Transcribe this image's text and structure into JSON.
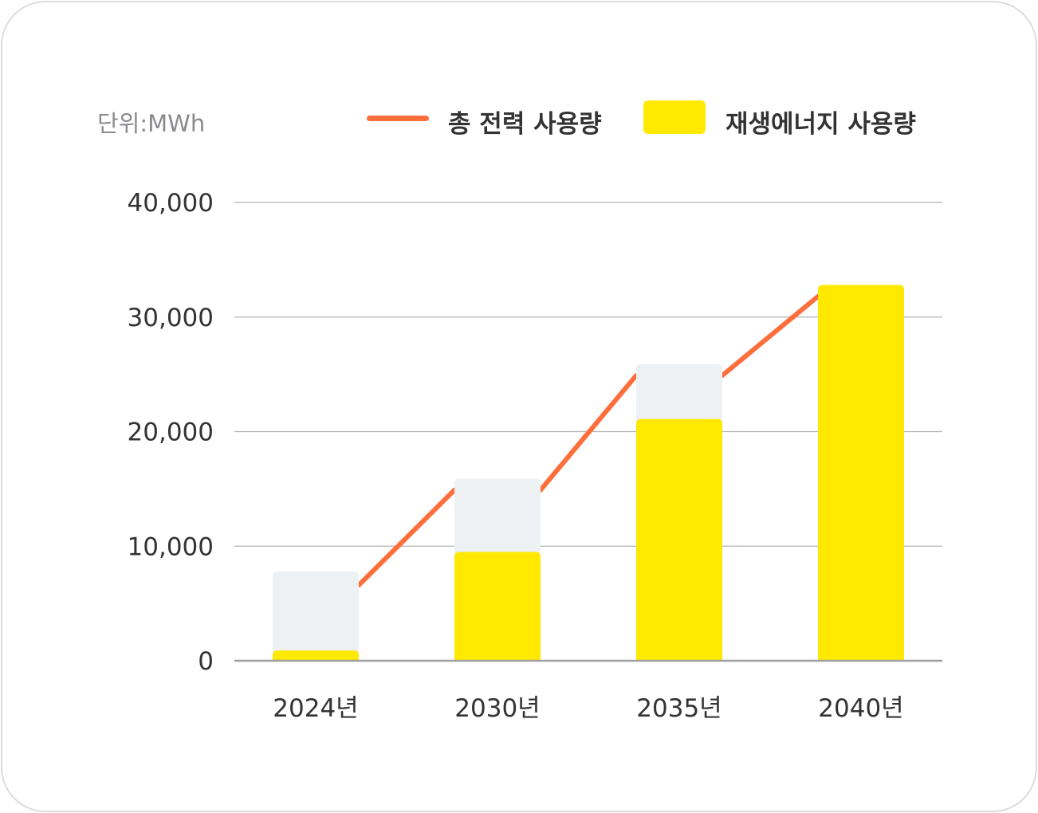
{
  "chart_data": {
    "type": "bar",
    "unit_label": "단위:MWh",
    "categories": [
      "2024년",
      "2030년",
      "2035년",
      "2040년"
    ],
    "ylim": [
      0,
      40000
    ],
    "yticks": [
      0,
      10000,
      20000,
      30000,
      40000
    ],
    "ytick_labels": [
      "0",
      "10,000",
      "20,000",
      "30,000",
      "40,000"
    ],
    "grid": true,
    "legend_position": "top-right",
    "series": [
      {
        "name": "총 전력 사용량",
        "kind": "line",
        "values": [
          6600,
          14900,
          24900,
          31800
        ],
        "color": "#ff6f3c"
      },
      {
        "name": "재생에너지 사용량",
        "kind": "bar",
        "values": [
          900,
          9500,
          21100,
          32800
        ],
        "color": "#ffe900"
      }
    ],
    "total_bars": {
      "values": [
        7800,
        15900,
        25900,
        32800
      ],
      "color": "#edf1f4"
    }
  },
  "colors": {
    "grid": "#b3b3b3",
    "axis": "#a0a0a0",
    "text": "#333333",
    "unit_text": "#8a8a8f"
  }
}
